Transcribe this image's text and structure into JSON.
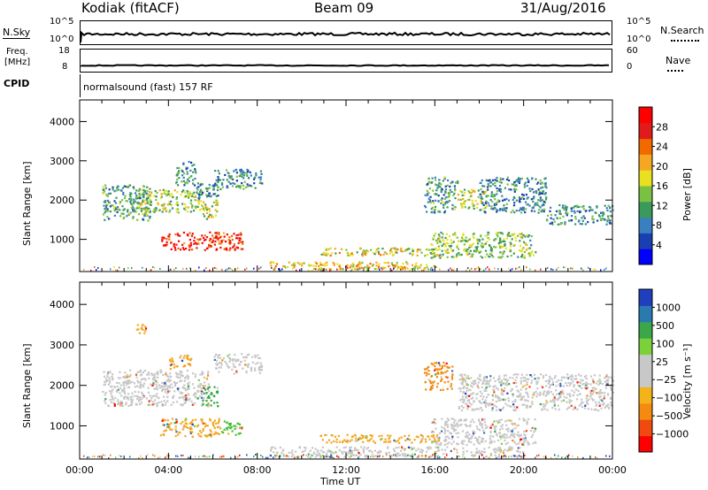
{
  "header": {
    "station": "Kodiak (fitACF)",
    "beam": "Beam 09",
    "date": "31/Aug/2016"
  },
  "noise_panel": {
    "left_label": "N.Sky",
    "left_ticks": [
      "10^5",
      "10^0"
    ],
    "right_ticks": [
      "10^5",
      "10^0"
    ],
    "right_label": "N.Search"
  },
  "freq_panel": {
    "left_label_1": "Freq.",
    "left_label_2": "[MHz]",
    "left_ticks": [
      "18",
      "8"
    ],
    "right_ticks": [
      "60",
      "0"
    ],
    "right_label": "Nave",
    "cpid_label": "CPID",
    "cpid_text": "normalsound (fast) 157 RF"
  },
  "chart_data": [
    {
      "type": "heatmap",
      "name": "power",
      "ylabel": "Slant Range [km]",
      "y_ticks": [
        "4000",
        "3000",
        "2000",
        "1000"
      ],
      "y_tick_values": [
        4000,
        3000,
        2000,
        1000
      ],
      "ylim": [
        180,
        4550
      ],
      "xlim": [
        0,
        24
      ],
      "colorbar": {
        "label": "Power [dB]",
        "ticks": [
          "28",
          "24",
          "20",
          "16",
          "12",
          "8",
          "4"
        ],
        "colors": [
          "#0000ff",
          "#1a3fb0",
          "#3a7fbf",
          "#3a9a5a",
          "#7ac143",
          "#e8e020",
          "#f5a623",
          "#f06a00",
          "#e11b1b",
          "#ff0000"
        ]
      },
      "regions": [
        {
          "t0": 1.0,
          "t1": 3.2,
          "r0": 1500,
          "r1": 2400,
          "level": 0.35
        },
        {
          "t0": 2.5,
          "t1": 5.5,
          "r0": 1700,
          "r1": 2300,
          "level": 0.45
        },
        {
          "t0": 5.2,
          "t1": 6.2,
          "r0": 2000,
          "r1": 2450,
          "level": 0.3
        },
        {
          "t0": 4.3,
          "t1": 5.2,
          "r0": 2400,
          "r1": 3000,
          "level": 0.3
        },
        {
          "t0": 6.0,
          "t1": 8.2,
          "r0": 2300,
          "r1": 2800,
          "level": 0.3
        },
        {
          "t0": 5.5,
          "t1": 6.2,
          "r0": 1500,
          "r1": 2000,
          "level": 0.55
        },
        {
          "t0": 3.6,
          "t1": 7.3,
          "r0": 750,
          "r1": 1200,
          "level": 0.85
        },
        {
          "t0": 10.8,
          "t1": 16.2,
          "r0": 600,
          "r1": 800,
          "level": 0.55
        },
        {
          "t0": 8.5,
          "t1": 16.0,
          "r0": 250,
          "r1": 450,
          "level": 0.6
        },
        {
          "t0": 15.8,
          "t1": 20.5,
          "r0": 550,
          "r1": 1200,
          "level": 0.45
        },
        {
          "t0": 15.5,
          "t1": 17.0,
          "r0": 1700,
          "r1": 2600,
          "level": 0.35
        },
        {
          "t0": 17.0,
          "t1": 18.3,
          "r0": 1800,
          "r1": 2300,
          "level": 0.5
        },
        {
          "t0": 18.0,
          "t1": 21.0,
          "r0": 1700,
          "r1": 2600,
          "level": 0.3
        },
        {
          "t0": 21.0,
          "t1": 24.0,
          "r0": 1400,
          "r1": 1900,
          "level": 0.3
        }
      ]
    },
    {
      "type": "heatmap",
      "name": "velocity",
      "ylabel": "Slant Range [km]",
      "y_ticks": [
        "4000",
        "3000",
        "2000",
        "1000"
      ],
      "y_tick_values": [
        4000,
        3000,
        2000,
        1000
      ],
      "ylim": [
        180,
        4550
      ],
      "xlim": [
        0,
        24
      ],
      "xlabel": "Time UT",
      "x_ticks": [
        "00:00",
        "04:00",
        "08:00",
        "12:00",
        "16:00",
        "20:00",
        "00:00"
      ],
      "x_tick_values": [
        0,
        4,
        8,
        12,
        16,
        20,
        24
      ],
      "colorbar": {
        "label": "Velocity [m s⁻¹]",
        "ticks": [
          "1000",
          "500",
          "100",
          "25",
          "−25",
          "−100",
          "−500",
          "−1000"
        ],
        "colors": [
          "#ff0000",
          "#f04a10",
          "#f58a10",
          "#f5b31a",
          "#c8c8c8",
          "#c8c8c8",
          "#7ad13a",
          "#3aa84a",
          "#2a7ab0",
          "#1f3fbf"
        ]
      },
      "regions": [
        {
          "t0": 1.0,
          "t1": 5.8,
          "r0": 1500,
          "r1": 2400,
          "color": "#c8c8c8"
        },
        {
          "t0": 6.0,
          "t1": 8.2,
          "r0": 2300,
          "r1": 2800,
          "color": "#c8c8c8"
        },
        {
          "t0": 5.5,
          "t1": 6.2,
          "r0": 1500,
          "r1": 2000,
          "color": "#3aa84a"
        },
        {
          "t0": 3.6,
          "t1": 6.3,
          "r0": 750,
          "r1": 1200,
          "color": "#f5a623"
        },
        {
          "t0": 6.3,
          "t1": 7.3,
          "r0": 800,
          "r1": 1150,
          "color": "#4cbf3a"
        },
        {
          "t0": 10.8,
          "t1": 16.2,
          "r0": 600,
          "r1": 800,
          "color": "#f5a623"
        },
        {
          "t0": 8.5,
          "t1": 20.0,
          "r0": 250,
          "r1": 500,
          "color": "#c8c8c8"
        },
        {
          "t0": 15.8,
          "t1": 20.5,
          "r0": 550,
          "r1": 1200,
          "color": "#c8c8c8"
        },
        {
          "t0": 15.5,
          "t1": 16.8,
          "r0": 1900,
          "r1": 2600,
          "color": "#f58a10"
        },
        {
          "t0": 17.0,
          "t1": 24.0,
          "r0": 1400,
          "r1": 2300,
          "color": "#c8c8c8"
        },
        {
          "t0": 4.0,
          "t1": 5.0,
          "r0": 2400,
          "r1": 2800,
          "color": "#f5a623"
        },
        {
          "t0": 2.5,
          "t1": 3.0,
          "r0": 3300,
          "r1": 3550,
          "color": "#f5a623"
        }
      ]
    }
  ]
}
